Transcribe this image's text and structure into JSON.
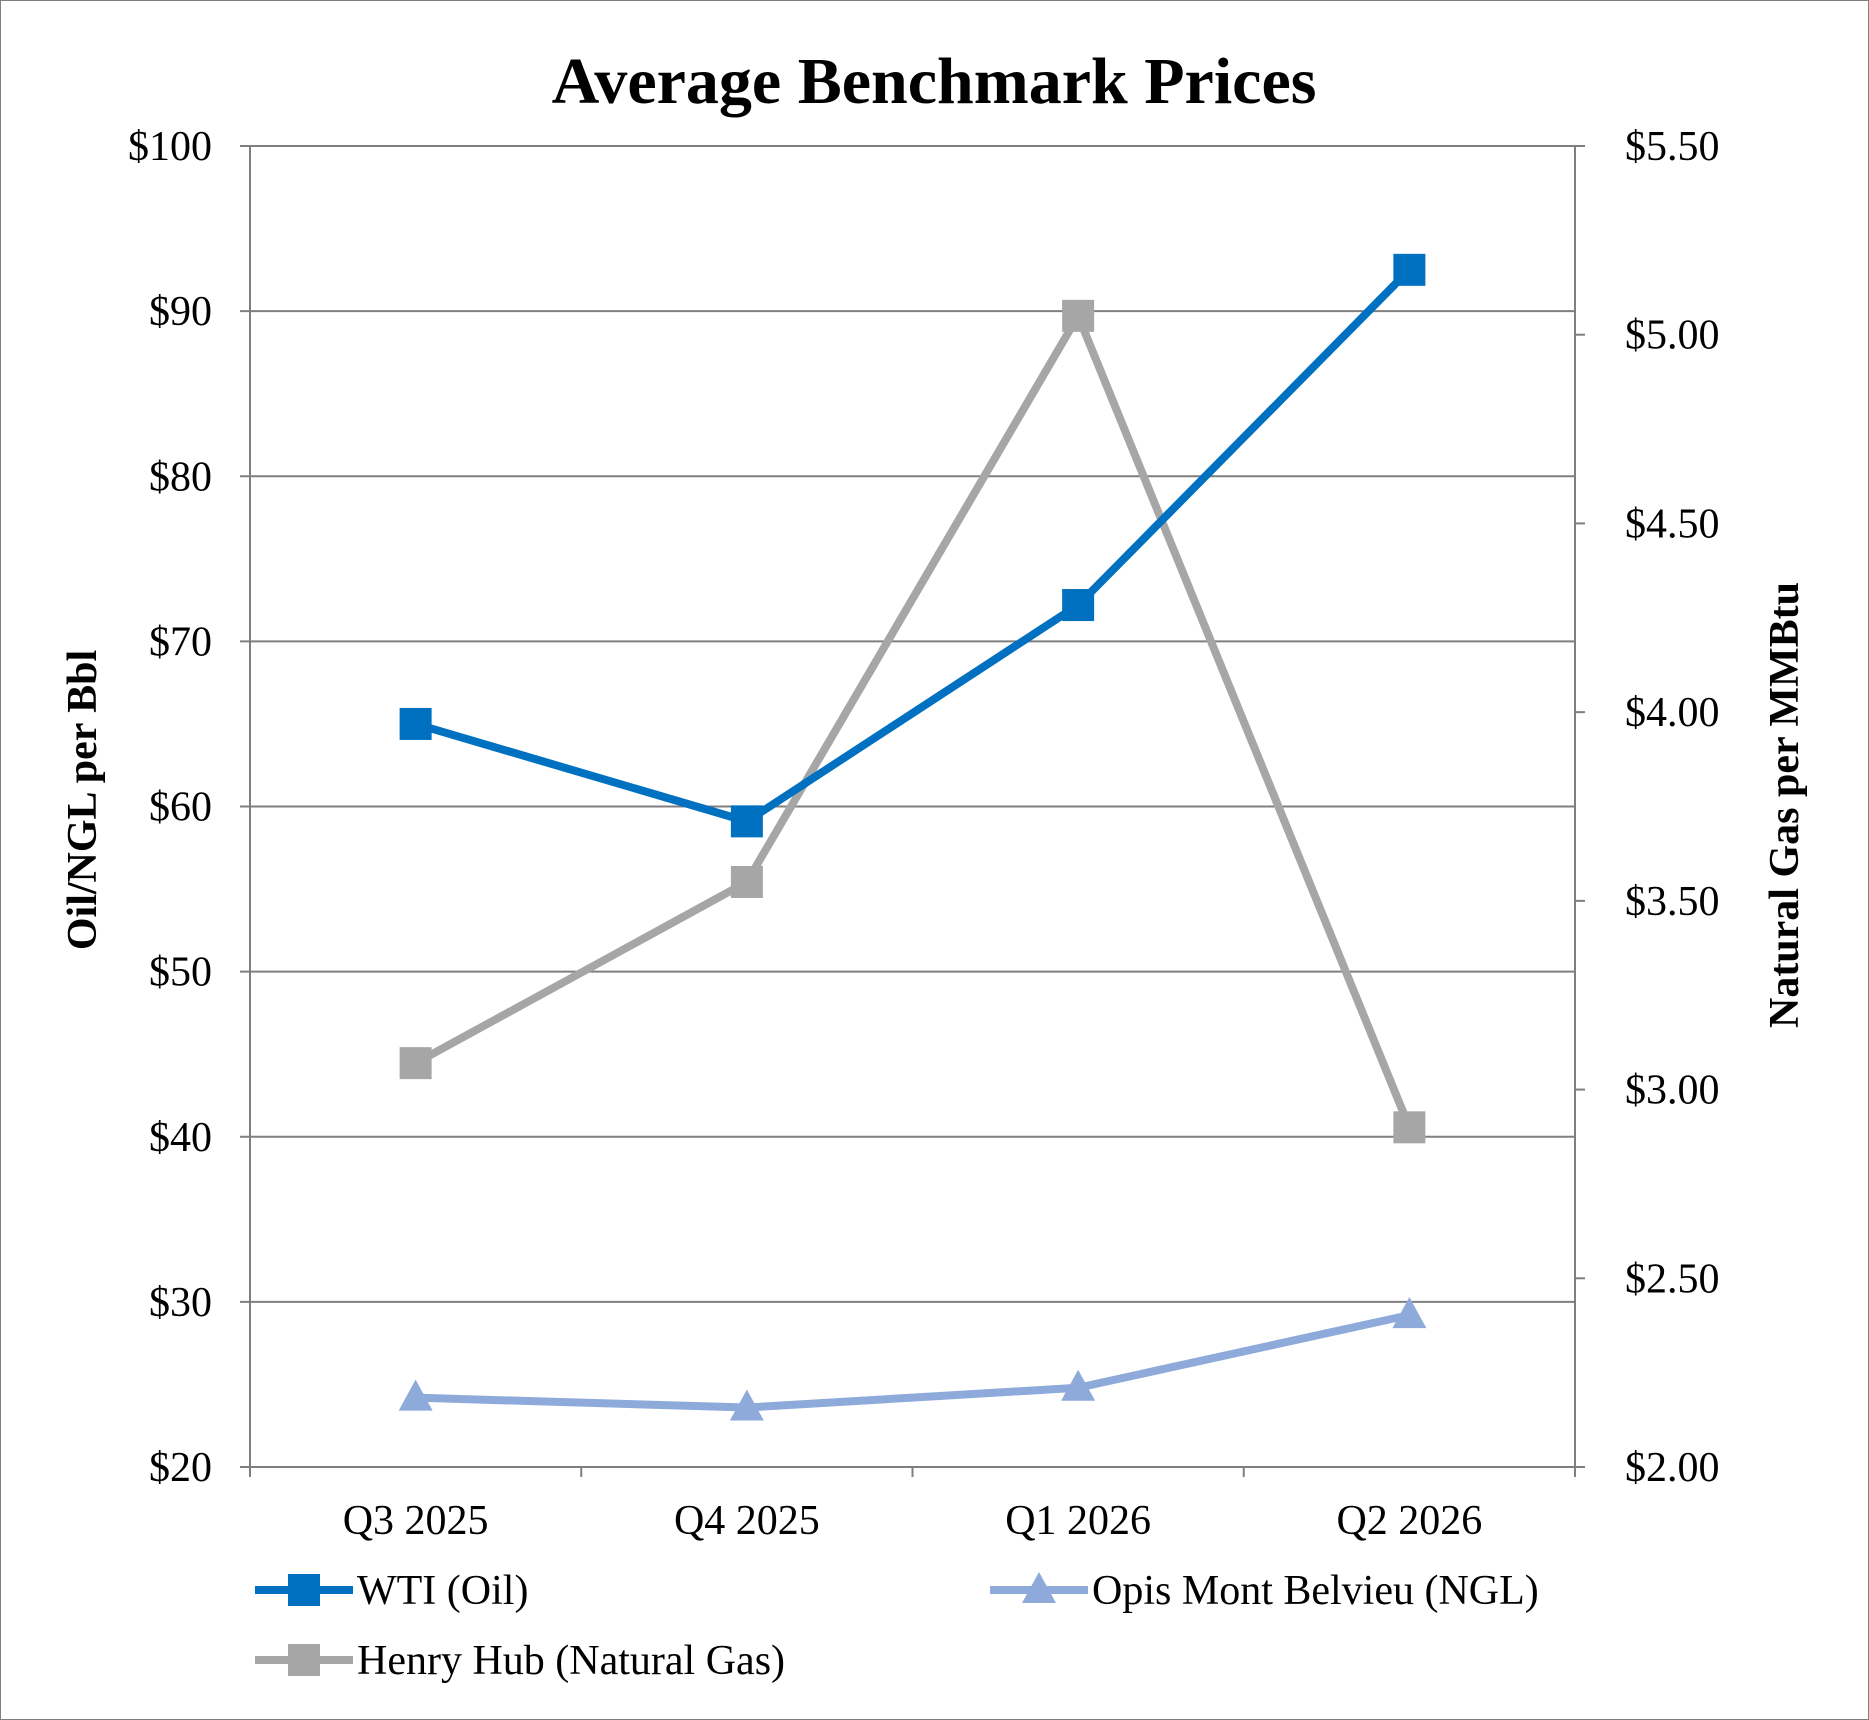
{
  "chart_data": {
    "type": "line",
    "title": "Average Benchmark Prices",
    "categories": [
      "Q3 2025",
      "Q4 2025",
      "Q1 2026",
      "Q2 2026"
    ],
    "y_left": {
      "label": "Oil/NGL per Bbl",
      "range": [
        20,
        100
      ],
      "ticks": [
        20,
        30,
        40,
        50,
        60,
        70,
        80,
        90,
        100
      ],
      "tick_labels": [
        "$20",
        "$30",
        "$40",
        "$50",
        "$60",
        "$70",
        "$80",
        "$90",
        "$100"
      ]
    },
    "y_right": {
      "label": "Natural Gas per MMBtu",
      "range": [
        2.0,
        5.5
      ],
      "ticks": [
        2.0,
        2.5,
        3.0,
        3.5,
        4.0,
        4.5,
        5.0,
        5.5
      ],
      "tick_labels": [
        "$2.00",
        "$2.50",
        "$3.00",
        "$3.50",
        "$4.00",
        "$4.50",
        "$5.00",
        "$5.50"
      ]
    },
    "grid": true,
    "legend_position": "bottom",
    "series": [
      {
        "name": "WTI (Oil)",
        "axis": "left",
        "marker": "square",
        "color": "#0070c0",
        "values": [
          65.0,
          59.1,
          72.2,
          92.5
        ]
      },
      {
        "name": "Opis Mont Belvieu (NGL)",
        "axis": "left",
        "marker": "triangle",
        "color": "#8eaadb",
        "values": [
          24.2,
          23.6,
          24.8,
          29.2
        ]
      },
      {
        "name": "Henry Hub (Natural Gas)",
        "axis": "right",
        "marker": "square",
        "color": "#a6a6a6",
        "values": [
          3.07,
          3.55,
          5.05,
          2.9
        ]
      }
    ]
  }
}
